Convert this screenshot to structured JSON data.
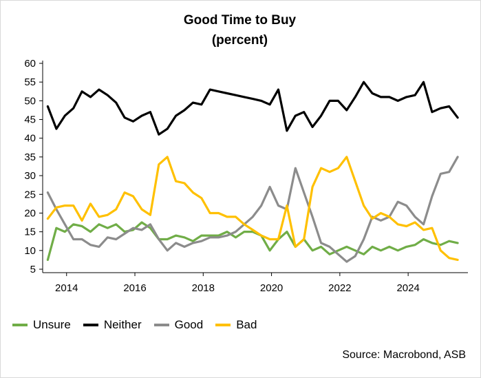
{
  "chart_data": {
    "type": "line",
    "title": "Good Time to Buy",
    "subtitle": "(percent)",
    "source": "Source: Macrobond, ASB",
    "ylim": [
      5,
      60
    ],
    "yticks": [
      5,
      10,
      15,
      20,
      25,
      30,
      35,
      40,
      45,
      50,
      55,
      60
    ],
    "xlim": [
      2013.3,
      2025.75
    ],
    "xticks": [
      2014,
      2016,
      2018,
      2020,
      2022,
      2024
    ],
    "grid": false,
    "legend_position": "bottom-left",
    "x": [
      2013.45,
      2013.7,
      2013.95,
      2014.2,
      2014.45,
      2014.7,
      2014.95,
      2015.2,
      2015.45,
      2015.7,
      2015.95,
      2016.2,
      2016.45,
      2016.7,
      2016.95,
      2017.2,
      2017.45,
      2017.7,
      2017.95,
      2018.2,
      2018.45,
      2018.7,
      2018.95,
      2019.2,
      2019.45,
      2019.7,
      2019.95,
      2020.2,
      2020.45,
      2020.7,
      2020.95,
      2021.2,
      2021.45,
      2021.7,
      2021.95,
      2022.2,
      2022.45,
      2022.7,
      2022.95,
      2023.2,
      2023.45,
      2023.7,
      2023.95,
      2024.2,
      2024.45,
      2024.7,
      2024.95,
      2025.2,
      2025.45
    ],
    "series": [
      {
        "name": "Unsure",
        "color": "#70ad47",
        "values": [
          7.5,
          16,
          15,
          17,
          16.5,
          15,
          17,
          16,
          17,
          15,
          15.5,
          17.5,
          16,
          13,
          13,
          14,
          13.5,
          12.5,
          14,
          14,
          14,
          15,
          13.5,
          15,
          15,
          14,
          10,
          13,
          15,
          11,
          13,
          10,
          11,
          9,
          10,
          11,
          10,
          9,
          11,
          10,
          11,
          10,
          11,
          11.5,
          13,
          12,
          11.5,
          12.5,
          12
        ]
      },
      {
        "name": "Neither",
        "color": "#000000",
        "values": [
          48.5,
          42.5,
          46,
          48,
          52.5,
          51,
          53,
          51.5,
          49.5,
          45.5,
          44.5,
          46,
          47,
          41,
          42.5,
          46,
          47.5,
          49.5,
          49,
          53,
          52.5,
          52,
          51.5,
          51,
          50.5,
          50,
          49,
          53,
          42,
          46,
          47,
          43,
          46,
          50,
          50,
          47.5,
          51,
          55,
          52,
          51,
          51,
          50,
          51,
          51.5,
          55,
          47,
          48,
          48.5,
          45.5
        ]
      },
      {
        "name": "Good",
        "color": "#8c8c8c",
        "values": [
          25.5,
          21,
          17,
          13,
          13,
          11.5,
          11,
          13.5,
          13,
          14.5,
          16,
          15.5,
          17,
          13,
          10,
          12,
          11,
          12,
          12.5,
          13.5,
          13.5,
          14,
          15,
          17,
          19,
          22,
          27,
          22,
          21,
          32,
          25.5,
          19,
          12,
          11,
          9,
          7,
          8.5,
          13,
          19,
          18,
          19,
          23,
          22,
          19,
          17,
          24.5,
          30.5,
          31,
          35
        ]
      },
      {
        "name": "Bad",
        "color": "#ffc000",
        "values": [
          18.5,
          21.5,
          22,
          22,
          18,
          22.5,
          19,
          19.5,
          21,
          25.5,
          24.5,
          21,
          19.5,
          33,
          35,
          28.5,
          28,
          25.5,
          24,
          20,
          20,
          19,
          19,
          17,
          15.5,
          14,
          13,
          13,
          22,
          11,
          13,
          27,
          32,
          31,
          32,
          35,
          28.5,
          22,
          18.5,
          20,
          19,
          17,
          16.5,
          17.5,
          15.5,
          16,
          10,
          8,
          7.5
        ]
      }
    ]
  }
}
